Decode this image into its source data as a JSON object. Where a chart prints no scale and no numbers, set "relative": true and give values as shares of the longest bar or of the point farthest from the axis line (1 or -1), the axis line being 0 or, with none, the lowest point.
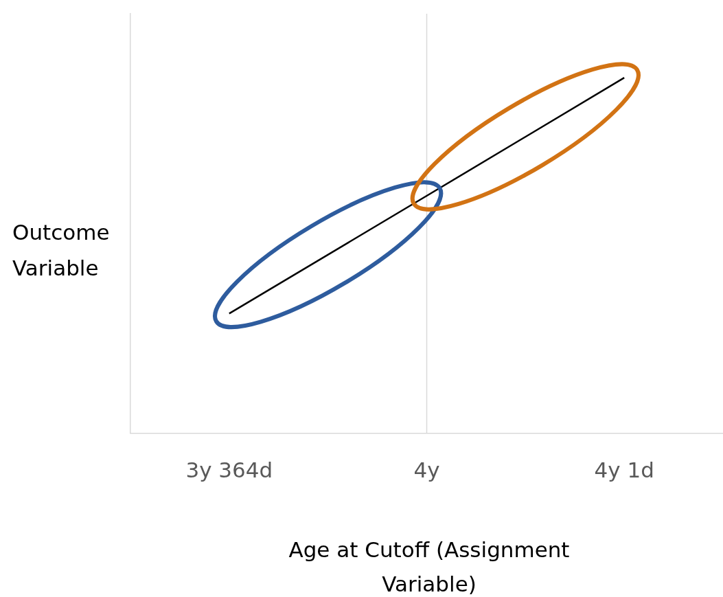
{
  "chart_data": {
    "type": "line",
    "relative": true,
    "categories": [
      "3y 364d",
      "4y",
      "4y 1d"
    ],
    "values": [
      0.337,
      0.668,
      1
    ],
    "color": "#000000",
    "marker": "none",
    "xlabel": "Age at Cutoff (Assignment Variable)",
    "ylabel": "Outcome Variable",
    "ref_lines": [
      {
        "axis": "x",
        "value": "4y",
        "color": "#d9d9d9"
      }
    ]
  }
}
